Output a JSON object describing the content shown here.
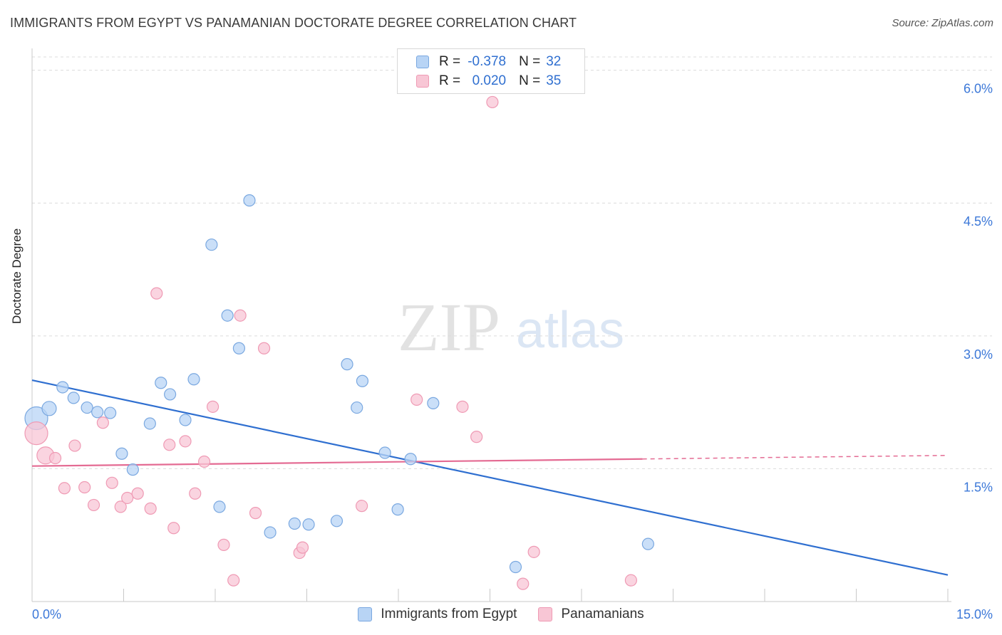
{
  "header": {
    "title": "IMMIGRANTS FROM EGYPT VS PANAMANIAN DOCTORATE DEGREE CORRELATION CHART",
    "source": "Source: ZipAtlas.com"
  },
  "watermark": {
    "zip": "ZIP",
    "atlas": "atlas"
  },
  "legend_top": {
    "rows": [
      {
        "r_label": "R =",
        "r_value": "-0.378",
        "n_label": "N =",
        "n_value": "32"
      },
      {
        "r_label": "R =",
        "r_value": "0.020",
        "n_label": "N =",
        "n_value": "35"
      }
    ]
  },
  "legend_bottom": {
    "items": [
      {
        "label": "Immigrants from Egypt"
      },
      {
        "label": "Panamanians"
      }
    ]
  },
  "colors": {
    "blue_fill": "#b8d4f5",
    "blue_stroke": "#7aa8e0",
    "blue_line": "#2f6fd0",
    "pink_fill": "#f8c6d5",
    "pink_stroke": "#ef9ab4",
    "pink_line": "#e46b93",
    "grid": "#dcdcdc",
    "axis_label": "#3c78d8"
  },
  "chart_data": {
    "type": "scatter",
    "title": "IMMIGRANTS FROM EGYPT VS PANAMANIAN DOCTORATE DEGREE CORRELATION CHART",
    "xlabel": "",
    "ylabel": "Doctorate Degree",
    "xlim": [
      0,
      15
    ],
    "ylim": [
      0,
      6.15
    ],
    "x_ticks": [
      "0.0%",
      "15.0%"
    ],
    "y_ticks": [
      {
        "value": 1.5,
        "label": "1.5%"
      },
      {
        "value": 3.0,
        "label": "3.0%"
      },
      {
        "value": 4.5,
        "label": "4.5%"
      },
      {
        "value": 6.0,
        "label": "6.0%"
      }
    ],
    "series": [
      {
        "name": "Immigrants from Egypt",
        "color": "blue",
        "r": -0.378,
        "n": 32,
        "trend": {
          "x": [
            0,
            15
          ],
          "y": [
            2.5,
            0.3
          ]
        },
        "points": [
          {
            "x": 0.07,
            "y": 2.07,
            "s": 16
          },
          {
            "x": 0.28,
            "y": 2.18,
            "s": 10
          },
          {
            "x": 0.5,
            "y": 2.42,
            "s": 8
          },
          {
            "x": 0.68,
            "y": 2.3,
            "s": 8
          },
          {
            "x": 0.9,
            "y": 2.19,
            "s": 8
          },
          {
            "x": 1.07,
            "y": 2.14,
            "s": 8
          },
          {
            "x": 1.28,
            "y": 2.13,
            "s": 8
          },
          {
            "x": 1.47,
            "y": 1.67,
            "s": 8
          },
          {
            "x": 1.65,
            "y": 1.49,
            "s": 8
          },
          {
            "x": 1.93,
            "y": 2.01,
            "s": 8
          },
          {
            "x": 2.11,
            "y": 2.47,
            "s": 8
          },
          {
            "x": 2.26,
            "y": 2.34,
            "s": 8
          },
          {
            "x": 2.51,
            "y": 2.05,
            "s": 8
          },
          {
            "x": 2.65,
            "y": 2.51,
            "s": 8
          },
          {
            "x": 2.94,
            "y": 4.03,
            "s": 8
          },
          {
            "x": 3.07,
            "y": 1.07,
            "s": 8
          },
          {
            "x": 3.2,
            "y": 3.23,
            "s": 8
          },
          {
            "x": 3.39,
            "y": 2.86,
            "s": 8
          },
          {
            "x": 3.56,
            "y": 4.53,
            "s": 8
          },
          {
            "x": 3.9,
            "y": 0.78,
            "s": 8
          },
          {
            "x": 4.3,
            "y": 0.88,
            "s": 8
          },
          {
            "x": 4.53,
            "y": 0.87,
            "s": 8
          },
          {
            "x": 4.99,
            "y": 0.91,
            "s": 8
          },
          {
            "x": 5.16,
            "y": 2.68,
            "s": 8
          },
          {
            "x": 5.32,
            "y": 2.19,
            "s": 8
          },
          {
            "x": 5.41,
            "y": 2.49,
            "s": 8
          },
          {
            "x": 5.78,
            "y": 1.68,
            "s": 8
          },
          {
            "x": 5.99,
            "y": 1.04,
            "s": 8
          },
          {
            "x": 6.2,
            "y": 1.61,
            "s": 8
          },
          {
            "x": 6.57,
            "y": 2.24,
            "s": 8
          },
          {
            "x": 7.92,
            "y": 0.39,
            "s": 8
          },
          {
            "x": 10.09,
            "y": 0.65,
            "s": 8
          }
        ]
      },
      {
        "name": "Panamanians",
        "color": "pink",
        "r": 0.02,
        "n": 35,
        "trend": {
          "x": [
            0,
            10.0
          ],
          "y": [
            1.53,
            1.61
          ]
        },
        "trend_dashed": {
          "x": [
            10.0,
            15
          ],
          "y": [
            1.61,
            1.65
          ]
        },
        "points": [
          {
            "x": 0.07,
            "y": 1.9,
            "s": 16
          },
          {
            "x": 0.22,
            "y": 1.65,
            "s": 12
          },
          {
            "x": 0.38,
            "y": 1.62,
            "s": 8
          },
          {
            "x": 0.53,
            "y": 1.28,
            "s": 8
          },
          {
            "x": 0.7,
            "y": 1.76,
            "s": 8
          },
          {
            "x": 0.86,
            "y": 1.29,
            "s": 8
          },
          {
            "x": 1.01,
            "y": 1.09,
            "s": 8
          },
          {
            "x": 1.16,
            "y": 2.02,
            "s": 8
          },
          {
            "x": 1.31,
            "y": 1.34,
            "s": 8
          },
          {
            "x": 1.45,
            "y": 1.07,
            "s": 8
          },
          {
            "x": 1.56,
            "y": 1.17,
            "s": 8
          },
          {
            "x": 1.73,
            "y": 1.22,
            "s": 8
          },
          {
            "x": 1.94,
            "y": 1.05,
            "s": 8
          },
          {
            "x": 2.04,
            "y": 3.48,
            "s": 8
          },
          {
            "x": 2.25,
            "y": 1.77,
            "s": 8
          },
          {
            "x": 2.32,
            "y": 0.83,
            "s": 8
          },
          {
            "x": 2.51,
            "y": 1.81,
            "s": 8
          },
          {
            "x": 2.67,
            "y": 1.22,
            "s": 8
          },
          {
            "x": 2.82,
            "y": 1.58,
            "s": 8
          },
          {
            "x": 2.96,
            "y": 2.2,
            "s": 8
          },
          {
            "x": 3.14,
            "y": 0.64,
            "s": 8
          },
          {
            "x": 3.3,
            "y": 0.24,
            "s": 8
          },
          {
            "x": 3.41,
            "y": 3.23,
            "s": 8
          },
          {
            "x": 3.8,
            "y": 2.86,
            "s": 8
          },
          {
            "x": 3.66,
            "y": 1.0,
            "s": 8
          },
          {
            "x": 4.38,
            "y": 0.55,
            "s": 8
          },
          {
            "x": 4.43,
            "y": 0.61,
            "s": 8
          },
          {
            "x": 5.4,
            "y": 1.08,
            "s": 8
          },
          {
            "x": 6.3,
            "y": 2.28,
            "s": 8
          },
          {
            "x": 7.05,
            "y": 2.2,
            "s": 8
          },
          {
            "x": 7.28,
            "y": 1.86,
            "s": 8
          },
          {
            "x": 7.54,
            "y": 5.64,
            "s": 8
          },
          {
            "x": 8.04,
            "y": 0.2,
            "s": 8
          },
          {
            "x": 8.22,
            "y": 0.56,
            "s": 8
          },
          {
            "x": 9.81,
            "y": 0.24,
            "s": 8
          }
        ]
      }
    ]
  }
}
